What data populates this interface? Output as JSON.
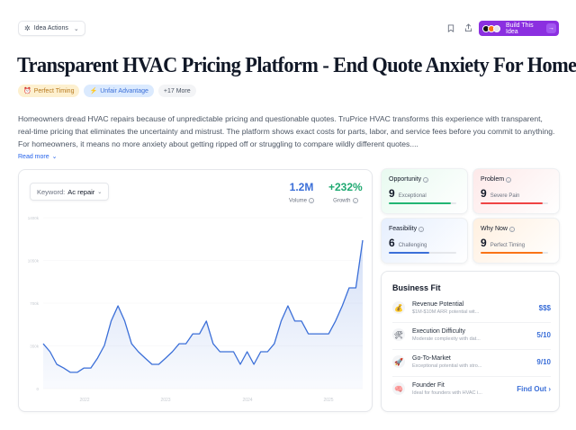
{
  "header": {
    "idea_actions_label": "Idea Actions",
    "build_button_label": "Build This Idea",
    "bookmark_icon": "bookmark-icon",
    "share_icon": "share-icon"
  },
  "title": "Transparent HVAC Pricing Platform - End Quote Anxiety For Homeowners",
  "tags": [
    {
      "label": "Perfect Timing",
      "icon": "alarm-clock-icon",
      "color": "#b7791f"
    },
    {
      "label": "Unfair Advantage",
      "icon": "lightning-icon",
      "color": "#3b6fd8"
    },
    {
      "label": "+17 More"
    }
  ],
  "description": "Homeowners dread HVAC repairs because of unpredictable pricing and questionable quotes. TruPrice HVAC transforms this experience with transparent, real-time pricing that eliminates the uncertainty and mistrust. The platform shows exact costs for parts, labor, and service fees before you commit to anything. For homeowners, it means no more anxiety about getting ripped off or struggling to compare wildly different quotes....",
  "read_more_label": "Read more",
  "trend": {
    "keyword_label": "Keyword:",
    "keyword_value": "Ac repair",
    "volume_value": "1.2M",
    "volume_label": "Volume",
    "growth_value": "+232%",
    "growth_label": "Growth"
  },
  "chart_data": {
    "type": "area",
    "title": "",
    "xlabel": "",
    "ylabel": "",
    "ylim": [
      0,
      1400000
    ],
    "y_ticks": [
      "0",
      "350k",
      "700k",
      "1050k",
      "1400k"
    ],
    "x_ticks": [
      "2022",
      "2023",
      "2024",
      "2025"
    ],
    "grid": true,
    "legend": null,
    "series": [
      {
        "name": "Ac repair",
        "color": "#3b6fd8",
        "values": [
          368000,
          302000,
          199000,
          169000,
          133000,
          133000,
          169000,
          169000,
          250000,
          354000,
          553000,
          678000,
          553000,
          368000,
          302000,
          250000,
          199000,
          199000,
          250000,
          302000,
          368000,
          368000,
          449000,
          449000,
          553000,
          368000,
          302000,
          302000,
          302000,
          199000,
          302000,
          199000,
          302000,
          302000,
          368000,
          553000,
          678000,
          553000,
          553000,
          449000,
          449000,
          449000,
          449000,
          553000,
          678000,
          825000,
          825000,
          1216000
        ]
      }
    ]
  },
  "metrics": [
    {
      "title": "Opportunity",
      "score": "9",
      "desc": "Exceptional",
      "color": "#22b573",
      "pct": 92
    },
    {
      "title": "Problem",
      "score": "9",
      "desc": "Severe Pain",
      "color": "#ef4444",
      "pct": 92
    },
    {
      "title": "Feasibility",
      "score": "6",
      "desc": "Challenging",
      "color": "#3b6fd8",
      "pct": 60
    },
    {
      "title": "Why Now",
      "score": "9",
      "desc": "Perfect Timing",
      "color": "#f97316",
      "pct": 92
    }
  ],
  "business_fit": {
    "title": "Business Fit",
    "rows": [
      {
        "icon": "money-bag-icon",
        "glyph": "💰",
        "title": "Revenue Potential",
        "sub": "$1M-$10M ARR potential wit...",
        "value": "$$$"
      },
      {
        "icon": "tools-icon",
        "glyph": "🛠",
        "title": "Execution Difficulty",
        "sub": "Moderate complexity with dat...",
        "value": "5/10"
      },
      {
        "icon": "rocket-icon",
        "glyph": "🚀",
        "title": "Go-To-Market",
        "sub": "Exceptional potential with stro...",
        "value": "9/10"
      },
      {
        "icon": "brain-icon",
        "glyph": "🧠",
        "title": "Founder Fit",
        "sub": "Ideal for founders with HVAC i...",
        "value": "Find Out ›"
      }
    ]
  }
}
